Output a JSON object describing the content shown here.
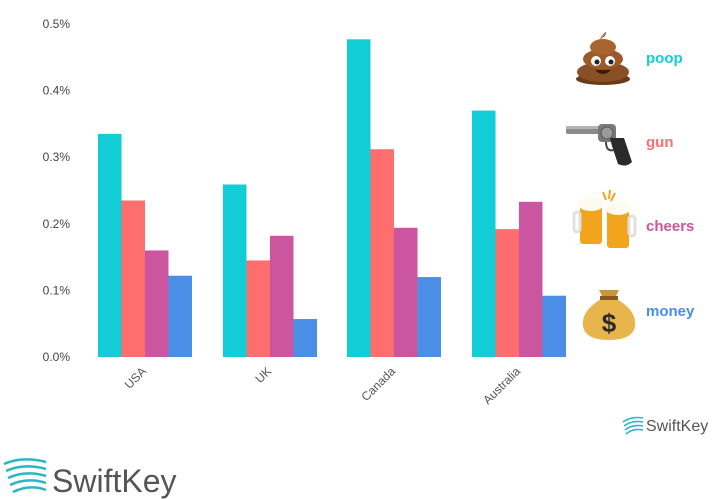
{
  "chart_data": {
    "type": "bar",
    "categories": [
      "USA",
      "UK",
      "Canada",
      "Australia"
    ],
    "series": [
      {
        "name": "poop",
        "color": "#12ccd6",
        "icon": "poop-emoji-icon",
        "values": [
          0.335,
          0.259,
          0.477,
          0.37
        ]
      },
      {
        "name": "gun",
        "color": "#ff6e6e",
        "icon": "pistol-emoji-icon",
        "values": [
          0.235,
          0.145,
          0.312,
          0.192
        ]
      },
      {
        "name": "cheers",
        "color": "#cc55a0",
        "icon": "beer-mugs-emoji-icon",
        "values": [
          0.16,
          0.182,
          0.194,
          0.233
        ]
      },
      {
        "name": "money",
        "color": "#4a8ee6",
        "icon": "money-bag-emoji-icon",
        "values": [
          0.122,
          0.057,
          0.12,
          0.092
        ]
      }
    ],
    "y_ticks": [
      "0.0%",
      "0.1%",
      "0.2%",
      "0.3%",
      "0.4%",
      "0.5%"
    ],
    "ylim": [
      0,
      0.5
    ],
    "grid": false,
    "legend_position": "right"
  },
  "branding": {
    "small": "SwiftKey",
    "large": "SwiftKey",
    "logo_icon": "swiftkey-swoosh-icon"
  }
}
